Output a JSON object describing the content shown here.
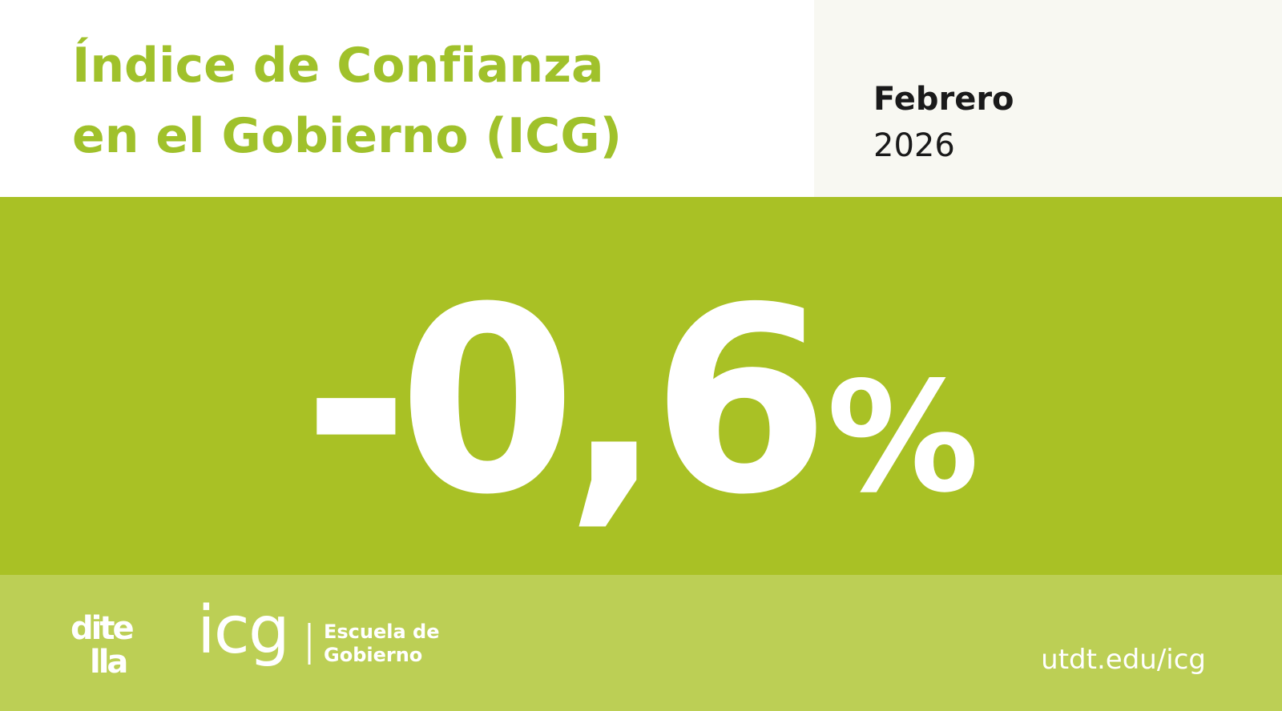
{
  "header": {
    "title_lines": [
      "Índice de Confianza",
      "en el Gobierno (ICG)"
    ],
    "month": "Febrero",
    "year": "2026"
  },
  "headline": {
    "value": "-0,6",
    "unit": "%"
  },
  "footer": {
    "logo_ditella": [
      "dite",
      "lla"
    ],
    "logo_icg": "icg",
    "school_lines": [
      "Escuela de",
      "Gobierno"
    ],
    "url": "utdt.edu/icg"
  }
}
